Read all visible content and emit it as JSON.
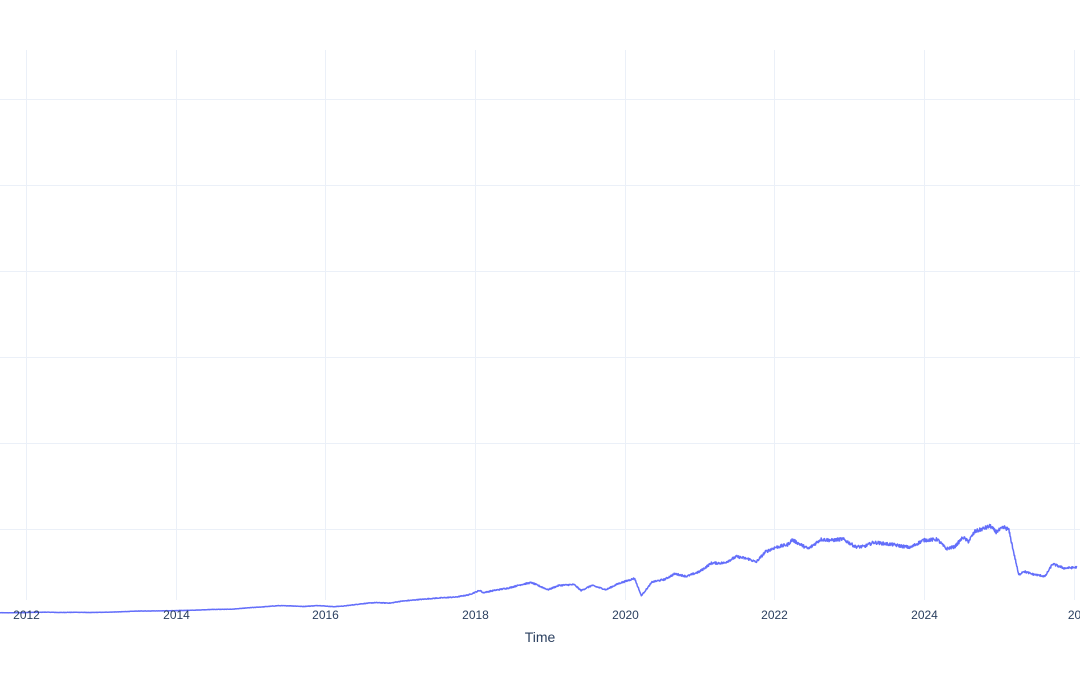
{
  "chart_data": {
    "type": "line",
    "title": "",
    "xlabel": "Time",
    "ylabel": "",
    "x_ticks": [
      "2012",
      "2014",
      "2016",
      "2018",
      "2020",
      "2022",
      "2024",
      "20"
    ],
    "xlim": [
      "2011-08-28",
      "2026-02-01"
    ],
    "grid": true,
    "legend": "none",
    "colors": {
      "line": "#636efa",
      "grid": "#ebf0f8",
      "text": "#2a3f5f",
      "background": "#ffffff"
    },
    "series": [
      {
        "x": [
          "2011-08-28",
          "2011-10-15",
          "2011-12-01",
          "2012-02-01",
          "2012-04-15",
          "2012-06-15",
          "2012-09-01",
          "2012-11-15",
          "2013-01-15",
          "2013-04-01",
          "2013-07-01",
          "2013-10-01",
          "2014-01-01",
          "2014-04-01",
          "2014-07-01",
          "2014-10-01",
          "2015-01-01",
          "2015-03-01",
          "2015-05-15",
          "2015-07-15",
          "2015-09-15",
          "2015-12-01",
          "2016-02-10",
          "2016-04-01",
          "2016-07-01",
          "2016-09-01",
          "2016-11-15",
          "2017-01-01",
          "2017-04-01",
          "2017-07-01",
          "2017-10-01",
          "2017-12-01",
          "2018-01-26",
          "2018-02-09",
          "2018-04-01",
          "2018-06-15",
          "2018-08-15",
          "2018-10-03",
          "2018-12-24",
          "2019-02-15",
          "2019-04-30",
          "2019-06-03",
          "2019-07-26",
          "2019-10-03",
          "2019-12-01",
          "2020-02-19",
          "2020-03-23",
          "2020-05-15",
          "2020-07-15",
          "2020-09-02",
          "2020-10-30",
          "2021-01-01",
          "2021-03-01",
          "2021-05-01",
          "2021-07-01",
          "2021-09-01",
          "2021-10-04",
          "2021-11-19",
          "2022-01-04",
          "2022-03-08",
          "2022-03-29",
          "2022-06-16",
          "2022-08-16",
          "2022-10-12",
          "2022-12-01",
          "2023-02-01",
          "2023-03-13",
          "2023-05-01",
          "2023-07-31",
          "2023-10-27",
          "2023-12-29",
          "2024-03-07",
          "2024-04-19",
          "2024-05-31",
          "2024-07-10",
          "2024-08-05",
          "2024-09-06",
          "2024-11-21",
          "2024-12-17",
          "2025-01-27",
          "2025-02-18",
          "2025-04-08",
          "2025-05-01",
          "2025-06-15",
          "2025-08-15",
          "2025-09-20",
          "2025-11-15",
          "2026-01-15"
        ],
        "y": [
          6.5,
          6.3,
          6.6,
          7.3,
          7.7,
          7.0,
          7.5,
          6.9,
          7.5,
          8.5,
          10.3,
          10.7,
          11.3,
          12.3,
          14.1,
          14.6,
          18.2,
          20.0,
          22.8,
          22.5,
          21.0,
          23.2,
          20.5,
          22.0,
          27.5,
          30.0,
          28.8,
          33.0,
          37.0,
          40.5,
          43.0,
          48.0,
          58.5,
          53.0,
          58.0,
          64.0,
          72.0,
          76.5,
          60.0,
          70.0,
          72.0,
          58.0,
          70.0,
          60.0,
          74.0,
          86.5,
          46.0,
          78.0,
          84.0,
          97.0,
          91.0,
          102.0,
          122.0,
          122.0,
          137.0,
          131.0,
          124.0,
          148.0,
          158.0,
          165.0,
          176.0,
          155.0,
          177.0,
          175.0,
          178.0,
          160.0,
          160.0,
          170.0,
          165.0,
          158.0,
          175.0,
          177.0,
          155.0,
          160.0,
          182.0,
          172.0,
          195.0,
          208.0,
          194.0,
          205.0,
          200.0,
          94.0,
          103.0,
          96.0,
          91.0,
          120.0,
          110.0,
          112.0
        ]
      }
    ]
  }
}
